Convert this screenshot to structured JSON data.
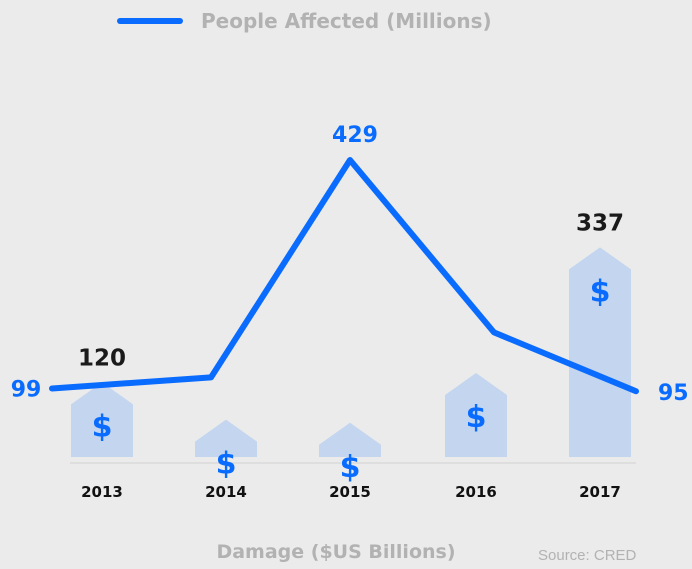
{
  "colors": {
    "line": "#0a6cff",
    "bar": "#c3d5ef",
    "dollar": "#0a6cff",
    "bar_value": "#1a1a1a",
    "line_value": "#0a6cff",
    "muted": "#b2b2b2",
    "axis": "#d2d2d2",
    "year": "#111111"
  },
  "icons": {
    "bar_marker": "dollar-icon"
  },
  "chart_data": {
    "type": "bar",
    "categories": [
      "2013",
      "2014",
      "2015",
      "2016",
      "2017"
    ],
    "bar_series": {
      "name": "Damage ($US Billions)",
      "values": [
        120,
        60,
        55,
        135,
        337
      ],
      "labels": [
        "120",
        "",
        "",
        "",
        "337"
      ]
    },
    "line_series": {
      "name": "People Affected (Millions)",
      "values": [
        99,
        115,
        429,
        180,
        95
      ],
      "labels": [
        "99",
        "",
        "429",
        "",
        "95"
      ]
    },
    "xlabel": "Damage ($US Billions)",
    "ylim": [
      0,
      450
    ],
    "grid": false,
    "legend_position": "top-center"
  },
  "source": "Source: CRED"
}
